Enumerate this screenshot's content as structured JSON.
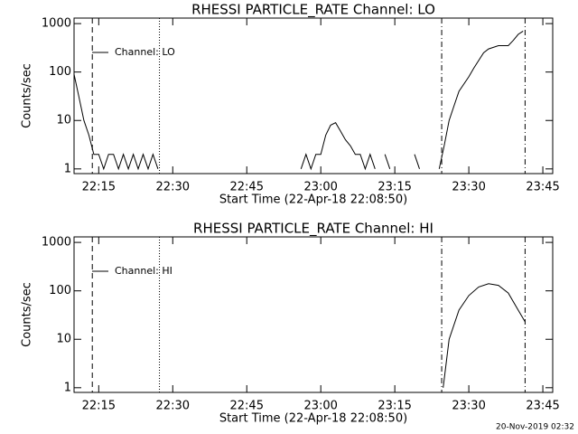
{
  "chart_data": [
    {
      "type": "line",
      "title": "RHESSI PARTICLE_RATE Channel: LO",
      "xlabel": "Start Time (22-Apr-18 22:08:50)",
      "ylabel": "Counts/sec",
      "log_y": true,
      "ylim": [
        0.8,
        1300
      ],
      "yticks": [
        1,
        10,
        100,
        1000
      ],
      "xlim": [
        "22:10",
        "23:47"
      ],
      "xticks": [
        "22:15",
        "22:30",
        "22:45",
        "23:00",
        "23:15",
        "23:30",
        "23:45"
      ],
      "legend": "upper left",
      "vlines": [
        {
          "x": "22:13.7",
          "style": "dashed"
        },
        {
          "x": "22:27.3",
          "style": "dotted"
        },
        {
          "x": "23:24.5",
          "style": "dashdot"
        },
        {
          "x": "23:41.4",
          "style": "dashdot"
        }
      ],
      "x": [
        "22:10",
        "22:11",
        "22:12",
        "22:13",
        "22:14",
        "22:15",
        "22:16",
        "22:17",
        "22:18",
        "22:19",
        "22:20",
        "22:21",
        "22:22",
        "22:23",
        "22:24",
        "22:25",
        "22:26",
        "22:27",
        "22:28",
        "22:29",
        "22:30",
        "22:56",
        "22:57",
        "22:58",
        "22:59",
        "23:00",
        "23:01",
        "23:02",
        "23:03",
        "23:04",
        "23:05",
        "23:06",
        "23:07",
        "23:08",
        "23:09",
        "23:10",
        "23:11",
        "23:12",
        "23:13",
        "23:14",
        "23:15",
        "23:18",
        "23:19",
        "23:20",
        "23:21",
        "23:24",
        "23:25",
        "23:26",
        "23:27",
        "23:28",
        "23:30",
        "23:31",
        "23:33",
        "23:34",
        "23:36",
        "23:38",
        "23:39",
        "23:40",
        "23:41"
      ],
      "series": [
        {
          "name": "Channel: LO",
          "color": "#000000",
          "values": [
            90,
            30,
            10,
            5,
            2,
            2,
            1,
            2,
            2,
            1,
            2,
            1,
            2,
            1,
            2,
            1,
            2,
            1,
            null,
            2,
            null,
            1,
            2,
            1,
            2,
            2,
            5,
            8,
            9,
            6,
            4,
            3,
            2,
            2,
            1,
            2,
            1,
            null,
            2,
            1,
            null,
            null,
            2,
            1,
            null,
            1,
            3,
            10,
            20,
            40,
            80,
            120,
            250,
            300,
            350,
            350,
            450,
            600,
            700
          ]
        }
      ]
    },
    {
      "type": "line",
      "title": "RHESSI PARTICLE_RATE Channel: HI",
      "xlabel": "Start Time (22-Apr-18 22:08:50)",
      "ylabel": "Counts/sec",
      "log_y": true,
      "ylim": [
        0.8,
        1300
      ],
      "yticks": [
        1,
        10,
        100,
        1000
      ],
      "xlim": [
        "22:10",
        "23:47"
      ],
      "xticks": [
        "22:15",
        "22:30",
        "22:45",
        "23:00",
        "23:15",
        "23:30",
        "23:45"
      ],
      "legend": "upper left",
      "vlines": [
        {
          "x": "22:13.7",
          "style": "dashed"
        },
        {
          "x": "22:27.3",
          "style": "dotted"
        },
        {
          "x": "23:24.5",
          "style": "dashdot"
        },
        {
          "x": "23:41.4",
          "style": "dashdot"
        }
      ],
      "x": [
        "23:24.8",
        "23:26",
        "23:28",
        "23:30",
        "23:32",
        "23:34",
        "23:36",
        "23:38",
        "23:40",
        "23:41.4"
      ],
      "series": [
        {
          "name": "Channel: HI",
          "color": "#000000",
          "values": [
            1,
            10,
            40,
            80,
            120,
            140,
            130,
            90,
            40,
            23
          ]
        }
      ]
    }
  ],
  "footer": "20-Nov-2019 02:32"
}
